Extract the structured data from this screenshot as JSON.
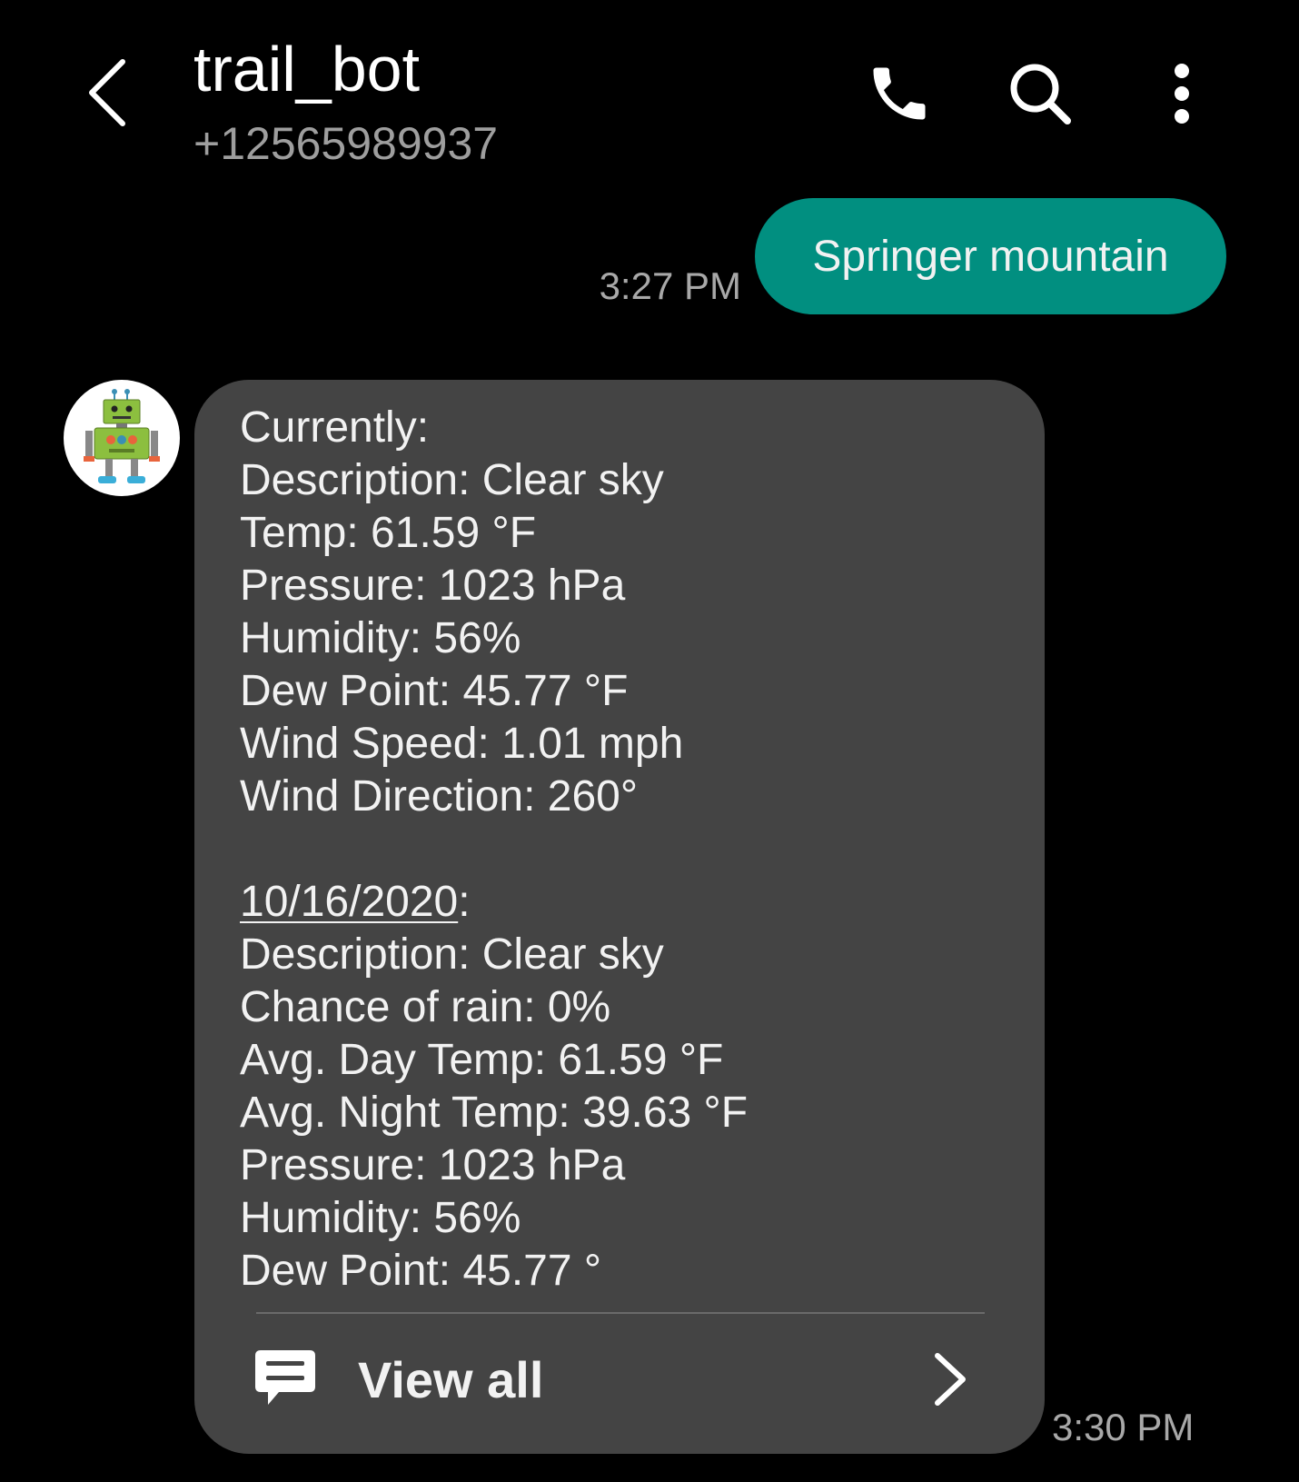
{
  "header": {
    "contact_name": "trail_bot",
    "contact_number": "+12565989937"
  },
  "icons": {
    "back": "chevron-left-icon",
    "call": "phone-icon",
    "search": "search-icon",
    "more": "more-vertical-icon",
    "avatar": "robot-avatar",
    "view_all": "message-icon",
    "view_all_arrow": "chevron-right-icon"
  },
  "colors": {
    "background": "#000000",
    "outgoing_bubble": "#018f80",
    "incoming_bubble": "#444444",
    "timestamp": "#a8a8a8"
  },
  "outgoing_message": {
    "text": "Springer mountain",
    "time": "3:27 PM"
  },
  "incoming_message": {
    "current_lines": [
      "Currently:",
      "Description: Clear sky",
      "Temp: 61.59 °F",
      "Pressure: 1023 hPa",
      "Humidity: 56%",
      "Dew Point: 45.77 °F",
      "Wind Speed: 1.01 mph",
      "Wind Direction: 260°"
    ],
    "forecast_date": "10/16/2020",
    "forecast_date_suffix": ":",
    "forecast_lines": [
      "Description: Clear sky",
      "Chance of rain: 0%",
      "Avg. Day Temp: 61.59 °F",
      "Avg. Night Temp: 39.63 °F",
      "Pressure: 1023 hPa",
      "Humidity: 56%",
      "Dew Point: 45.77 °"
    ],
    "view_all_label": "View all",
    "time": "3:30 PM"
  }
}
